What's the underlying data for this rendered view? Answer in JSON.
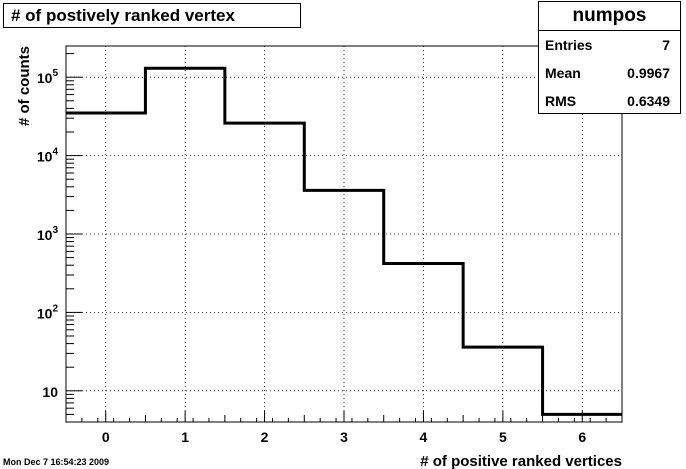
{
  "title": "# of postively ranked vertex",
  "stats": {
    "name": "numpos",
    "rows": [
      {
        "label": "Entries",
        "value": "7"
      },
      {
        "label": "Mean",
        "value": "0.9967"
      },
      {
        "label": "RMS",
        "value": "0.6349"
      }
    ]
  },
  "footer": {
    "date": "Mon Dec  7 16:54:23 2009"
  },
  "chart_data": {
    "type": "bar",
    "style": "step-histogram",
    "title": "# of postively ranked vertex",
    "xlabel": "# of positive ranked vertices",
    "ylabel": "# of counts",
    "yscale": "log",
    "grid": true,
    "xlim": [
      -0.5,
      6.5
    ],
    "ylim": [
      4,
      250000
    ],
    "bin_width": 1,
    "categories": [
      0,
      1,
      2,
      3,
      4,
      5,
      6
    ],
    "values": [
      35000,
      130000,
      26000,
      3600,
      420,
      36,
      5
    ],
    "x_ticks": [
      "0",
      "1",
      "2",
      "3",
      "4",
      "5",
      "6"
    ],
    "y_ticks": [
      {
        "value": 10,
        "label": "10"
      },
      {
        "value": 100,
        "label": "10^2"
      },
      {
        "value": 1000,
        "label": "10^3"
      },
      {
        "value": 10000,
        "label": "10^4"
      },
      {
        "value": 100000,
        "label": "10^5"
      }
    ]
  }
}
